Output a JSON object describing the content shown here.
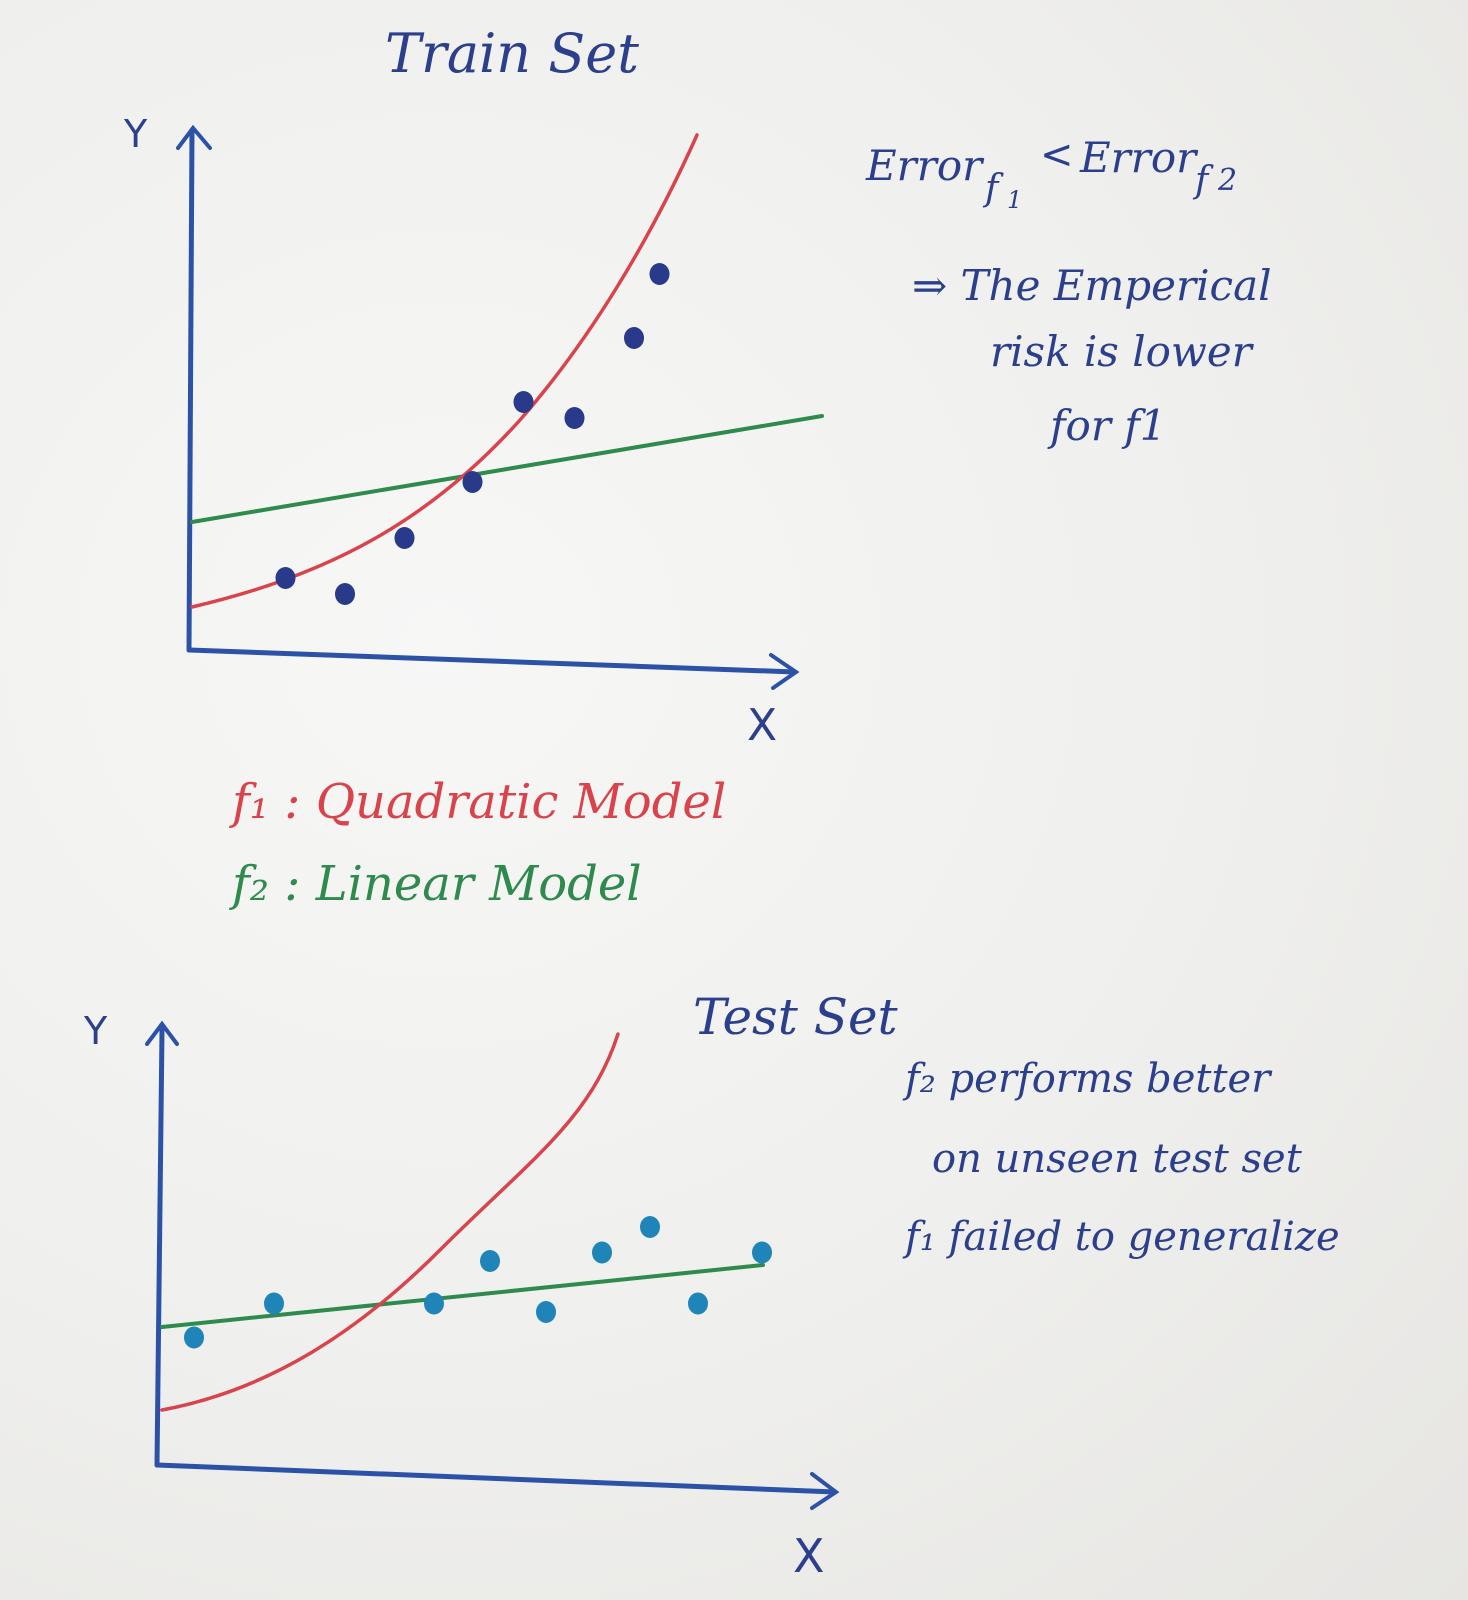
{
  "train": {
    "title": "Train Set",
    "y_label": "Y",
    "x_label": "X",
    "points": [
      [
        1.1,
        0.9
      ],
      [
        1.8,
        0.7
      ],
      [
        2.5,
        1.4
      ],
      [
        3.3,
        2.1
      ],
      [
        3.9,
        3.1
      ],
      [
        4.5,
        2.9
      ],
      [
        5.2,
        3.9
      ],
      [
        5.5,
        4.7
      ]
    ],
    "f1_color": "#d9434b",
    "f2_color": "#2e8a4d",
    "point_color": "#2a3a8a"
  },
  "test": {
    "title": "Test Set",
    "y_label": "Y",
    "x_label": "X",
    "points": [
      [
        0.4,
        1.5
      ],
      [
        1.4,
        1.9
      ],
      [
        3.4,
        1.9
      ],
      [
        4.1,
        2.4
      ],
      [
        4.8,
        1.8
      ],
      [
        5.5,
        2.5
      ],
      [
        6.1,
        2.8
      ],
      [
        6.7,
        1.9
      ],
      [
        7.5,
        2.5
      ]
    ],
    "point_color": "#1f84b8"
  },
  "notes": {
    "error_base": "Error",
    "error_sub1": "f",
    "error_sub1_index": "1",
    "error_lt": "<",
    "error_base2": "Error",
    "error_sub2": "f",
    "error_sub2_index": "2",
    "emp_line1": "⇒ The Emperical",
    "emp_line2": "risk is lower",
    "emp_line3": "for f1",
    "test_line1": "f₂ performs better",
    "test_line2": "on unseen test set",
    "test_line3": "f₁ failed to generalize"
  },
  "legend": {
    "f1": "f₁ : Quadratic Model",
    "f2": "f₂ : Linear Model"
  }
}
